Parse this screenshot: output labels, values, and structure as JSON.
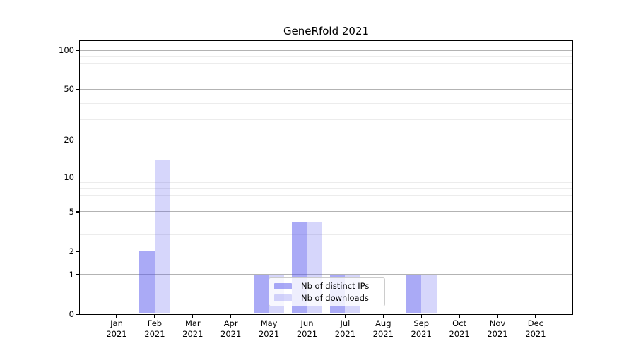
{
  "chart_data": {
    "type": "bar",
    "title": "GeneRfold 2021",
    "categories": [
      "Jan",
      "Feb",
      "Mar",
      "Apr",
      "May",
      "Jun",
      "Jul",
      "Aug",
      "Sep",
      "Oct",
      "Nov",
      "Dec"
    ],
    "x_tick_year": "2021",
    "series": [
      {
        "name": "Nb of distinct IPs",
        "color": "#aaaaf6",
        "color_rgba": "rgba(85,85,238,0.5)",
        "values": [
          0,
          2,
          0,
          0,
          1,
          4,
          1,
          0,
          1,
          0,
          0,
          0
        ]
      },
      {
        "name": "Nb of downloads",
        "color": "#dcdcfa",
        "color_rgba": "rgba(85,85,238,0.24)",
        "values": [
          0,
          14,
          0,
          0,
          1,
          4,
          1,
          0,
          1,
          0,
          0,
          0
        ]
      }
    ],
    "y_axis": {
      "scale": "log(1+x)",
      "tick_values": [
        0,
        1,
        2,
        5,
        10,
        20,
        50,
        100
      ],
      "tick_labels": [
        "0",
        "1",
        "2",
        "5",
        "10",
        "20",
        "50",
        "100"
      ],
      "minor_gridline_values": [
        3,
        4,
        6,
        7,
        8,
        9,
        19,
        29,
        39,
        49,
        59,
        69,
        79,
        89
      ],
      "ylim": [
        0,
        100
      ]
    },
    "legend": {
      "position": "lower center inside plot"
    },
    "grid": "horizontal only"
  },
  "colors": {
    "background": "#ffffff",
    "bar_distinct_ips": "#aaaaf6",
    "bar_downloads": "#dcdcfa",
    "major_gridline": "#b3b3b3",
    "minor_gridline": "#ececec",
    "axis_spine": "#000000",
    "legend_border": "#cccccc",
    "text": "#000000"
  }
}
